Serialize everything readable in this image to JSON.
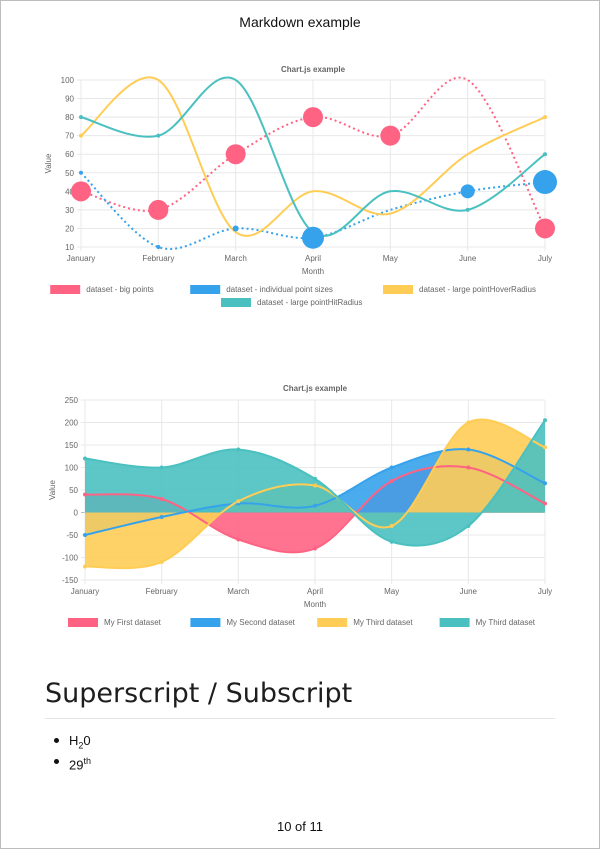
{
  "document": {
    "title": "Markdown example",
    "section_heading": "Superscript / Subscript",
    "list": [
      {
        "base": "H",
        "sub": "2",
        "tail": "0"
      },
      {
        "base": "29",
        "sup": "th"
      }
    ],
    "page_number": "10 of 11"
  },
  "chart_data": [
    {
      "type": "line",
      "title": "Chart.js example",
      "xlabel": "Month",
      "ylabel": "Value",
      "categories": [
        "January",
        "February",
        "March",
        "April",
        "May",
        "June",
        "July"
      ],
      "ylim": [
        10,
        100
      ],
      "yticks": [
        10,
        20,
        30,
        40,
        50,
        60,
        70,
        80,
        90,
        100
      ],
      "grid": true,
      "legend_position": "bottom",
      "series": [
        {
          "name": "dataset - big points",
          "color": "#ff6384",
          "values": [
            40,
            30,
            60,
            80,
            70,
            100,
            20
          ],
          "dashed": true,
          "point_sizes": [
            10,
            10,
            10,
            10,
            10,
            0,
            10
          ]
        },
        {
          "name": "dataset - individual point sizes",
          "color": "#36a2eb",
          "values": [
            50,
            10,
            20,
            15,
            30,
            40,
            45
          ],
          "dashed": true,
          "point_sizes": [
            2,
            2,
            3,
            11,
            0,
            7,
            12
          ]
        },
        {
          "name": "dataset - large pointHoverRadius",
          "color": "#ffcd56",
          "values": [
            70,
            100,
            18,
            40,
            28,
            60,
            80
          ],
          "dashed": false,
          "point_sizes": [
            2,
            0,
            0,
            0,
            0,
            0,
            2
          ]
        },
        {
          "name": "dataset - large pointHitRadius",
          "color": "#4bc0c0",
          "values": [
            80,
            70,
            100,
            18,
            40,
            30,
            60
          ],
          "dashed": false,
          "point_sizes": [
            2,
            2,
            0,
            0,
            0,
            2,
            2
          ]
        }
      ]
    },
    {
      "type": "area",
      "title": "Chart.js example",
      "xlabel": "Month",
      "ylabel": "Value",
      "categories": [
        "January",
        "February",
        "March",
        "April",
        "May",
        "June",
        "July"
      ],
      "ylim": [
        -150,
        250
      ],
      "yticks": [
        -150,
        -100,
        -50,
        0,
        50,
        100,
        150,
        200,
        250
      ],
      "grid": true,
      "legend_position": "bottom",
      "series": [
        {
          "name": "My First dataset",
          "color": "#ff6384",
          "values": [
            40,
            30,
            -60,
            -80,
            70,
            100,
            20
          ]
        },
        {
          "name": "My Second dataset",
          "color": "#36a2eb",
          "values": [
            -50,
            -10,
            20,
            15,
            100,
            140,
            65
          ]
        },
        {
          "name": "My Third dataset",
          "color": "#ffcd56",
          "values": [
            -120,
            -110,
            25,
            60,
            -30,
            200,
            145
          ]
        },
        {
          "name": "My Third dataset",
          "color": "#4bc0c0",
          "values": [
            120,
            100,
            140,
            75,
            -65,
            -30,
            205
          ]
        }
      ]
    }
  ]
}
